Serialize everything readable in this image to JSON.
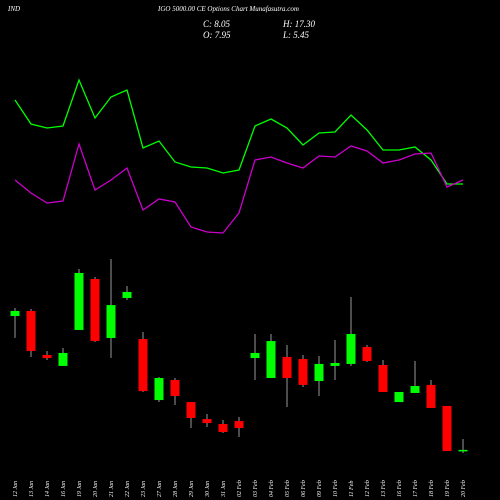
{
  "chart_data": {
    "type": "candlestick",
    "title_left": "IND",
    "title": "IGO 5000.00 CE Options  Chart Munafasutra.com",
    "ohlc_labels": [
      "C: 8.05",
      "H: 17.30",
      "O: 7.95",
      "L: 5.45"
    ],
    "categories": [
      "12 Jan",
      "13 Jan",
      "14 Jan",
      "16 Jan",
      "19 Jan",
      "20 Jan",
      "21 Jan",
      "22 Jan",
      "23 Jan",
      "27 Jan",
      "28 Jan",
      "29 Jan",
      "30 Jan",
      "31 Jan",
      "02 Feb",
      "03 Feb",
      "04 Feb",
      "05 Feb",
      "06 Feb",
      "09 Feb",
      "10 Feb",
      "11 Feb",
      "12 Feb",
      "13 Feb",
      "16 Feb",
      "17 Feb",
      "18 Feb",
      "19 Feb",
      "20 Feb"
    ],
    "open": [
      121.5,
      125.8,
      88.5,
      79.2,
      109.7,
      152.9,
      102.9,
      136.8,
      102.0,
      50.3,
      67.3,
      48.6,
      34.2,
      30.0,
      32.5,
      85.9,
      69.0,
      86.8,
      85.1,
      66.4,
      79.2,
      80.9,
      95.3,
      80.0,
      48.6,
      56.3,
      63.1,
      45.3,
      7.95
    ],
    "high": [
      128.3,
      127.5,
      91.9,
      94.4,
      161.4,
      154.6,
      169.8,
      146.9,
      108.0,
      69.8,
      69.0,
      48.6,
      38.5,
      33.4,
      35.9,
      106.3,
      106.3,
      97.0,
      88.5,
      87.6,
      101.2,
      137.6,
      97.0,
      84.2,
      57.1,
      83.4,
      67.3,
      45.3,
      17.3
    ],
    "low": [
      103.0,
      86.8,
      84.2,
      79.2,
      109.7,
      99.5,
      86.0,
      135.1,
      57.1,
      48.6,
      46.1,
      26.6,
      27.5,
      22.4,
      19.0,
      67.3,
      69.0,
      44.4,
      61.4,
      53.7,
      67.3,
      79.2,
      82.5,
      57.1,
      48.6,
      56.3,
      43.6,
      7.1,
      5.45
    ],
    "close": [
      125.8,
      91.9,
      85.9,
      90.2,
      158.0,
      100.3,
      130.8,
      141.9,
      57.9,
      69.0,
      53.7,
      35.1,
      30.8,
      23.2,
      26.6,
      90.2,
      100.3,
      69.0,
      63.1,
      80.9,
      81.7,
      106.3,
      83.4,
      57.1,
      57.1,
      62.2,
      43.6,
      7.1,
      8.05
    ],
    "up_color": "#00ff00",
    "down_color": "#ff0000",
    "ylim": [
      0,
      180
    ],
    "y2lim": [
      0,
      100
    ],
    "series": [
      {
        "color": "#00ff00",
        "axis": "y2",
        "values": [
          75,
          63,
          61,
          62,
          85,
          66,
          76.5,
          80,
          51,
          54.5,
          44,
          41.5,
          41,
          38.5,
          40,
          62,
          65.5,
          61,
          52.5,
          58.5,
          59,
          67.5,
          60,
          50,
          50,
          51.5,
          45,
          33,
          33
        ]
      },
      {
        "color": "#cc00cc",
        "axis": "y2",
        "values": [
          35,
          28.5,
          23.5,
          24.5,
          53,
          30,
          35,
          41,
          20,
          25.5,
          24,
          11.5,
          9,
          8.5,
          18.5,
          45,
          46.5,
          43.5,
          41,
          47,
          46.5,
          52,
          49.5,
          43.5,
          45,
          48,
          48.5,
          31.5,
          35
        ]
      }
    ]
  }
}
